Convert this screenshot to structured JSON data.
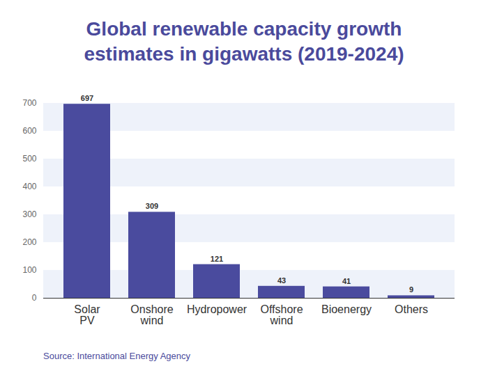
{
  "chart_data": {
    "type": "bar",
    "title": "Global renewable capacity growth estimates in gigawatts (2019-2024)",
    "caption": "Source: International Energy Agency",
    "categories": [
      "Solar PV",
      "Onshore wind",
      "Hydropower",
      "Offshore wind",
      "Bioenergy",
      "Others"
    ],
    "values": [
      697,
      309,
      121,
      43,
      41,
      9
    ],
    "color": "#4a4b9e",
    "ylim": [
      0,
      700
    ],
    "yticks": [
      0,
      100,
      200,
      300,
      400,
      500,
      600,
      700
    ],
    "grid": true,
    "data_labels": true
  }
}
